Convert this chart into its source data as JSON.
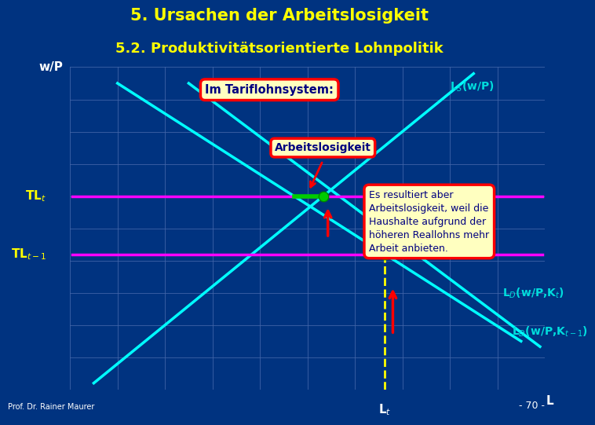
{
  "title1": "5. Ursachen der Arbeitslosigkeit",
  "title2": "5.2. Produktivitätsorientierte Lohnpolitik",
  "title_color": "#FFFF00",
  "bg_color": "#003380",
  "grid_color": "#4466AA",
  "cyan_color": "#00FFFF",
  "magenta_color": "#FF00FF",
  "yellow_color": "#FFFF00",
  "red_color": "#FF0000",
  "green_color": "#00CC00",
  "white_color": "#FFFFFF",
  "dot_color": "#00CC00",
  "navy_text": "#000080",
  "label_cyan": "#00DDDD",
  "label_green": "#00CC00",
  "ylabel": "w/P",
  "xlabel": "L",
  "LS_label": "L",
  "LS_label_sub": "S",
  "LS_label_rest": "(w/P)",
  "LD1_label": "L",
  "LD1_label_sub": "D",
  "LD1_label_rest": "(w/P,K",
  "LD1_label_t": "t",
  "LD1_label_end": ")",
  "LD2_label": "L",
  "LD2_label_sub": "D",
  "LD2_label_rest": "(w/P,K",
  "LD2_label_t": "t-1",
  "LD2_label_end": ")",
  "Im_Tariflohn_label": "Im Tariflohnsystem:",
  "Arbeitslosigkeit_label": "Arbeitslosigkeit",
  "Es_resultiert_text": "Es resultiert aber\nArbeitslosigkeit, weil die\nHaushalte aufgrund der\nhöheren Reallohns mehr\nArbeit anbieten.",
  "page_number": "- 70 -",
  "prof_label": "Prof. Dr. Rainer Maurer",
  "x_range": [
    0,
    10
  ],
  "y_range": [
    0,
    10
  ],
  "TLt_y": 6.0,
  "TLt1_y": 4.2,
  "LS_x0": 0.5,
  "LS_y0": 0.2,
  "LS_x1": 8.5,
  "LS_y1": 9.8,
  "LD1_x0": 1.0,
  "LD1_y0": 9.5,
  "LD1_x1": 9.5,
  "LD1_y1": 1.5,
  "LD2_x0": 2.5,
  "LD2_y0": 9.5,
  "LD2_x1": 10.2,
  "LD2_y1": 1.0
}
